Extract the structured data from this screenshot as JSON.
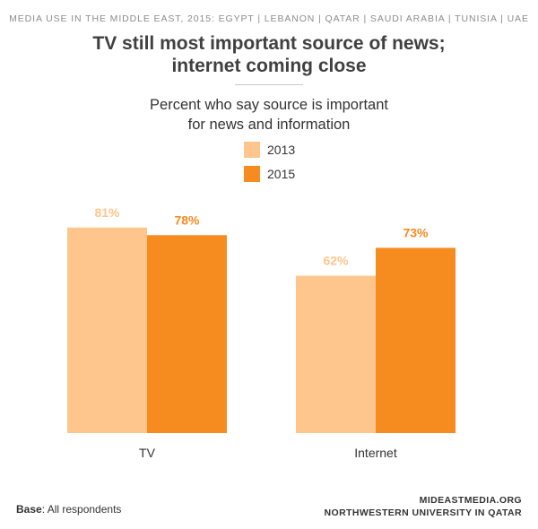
{
  "header": {
    "supertitle": "MEDIA USE IN THE MIDDLE EAST, 2015: EGYPT | LEBANON | QATAR | SAUDI ARABIA | TUNISIA | UAE",
    "title_line1": "TV still most important source of news;",
    "title_line2": "internet coming close"
  },
  "chart_data": {
    "type": "bar",
    "title": "TV still most important source of news; internet coming close",
    "subtitle": "Percent who say source is important for news and information",
    "subtitle_line1": "Percent who say source is important",
    "subtitle_line2": "for news and information",
    "categories": [
      "TV",
      "Internet"
    ],
    "series": [
      {
        "name": "2013",
        "values": [
          81,
          62
        ],
        "labels": [
          "81%",
          "62%"
        ],
        "color": "#FEC68C"
      },
      {
        "name": "2015",
        "values": [
          78,
          73
        ],
        "labels": [
          "78%",
          "73%"
        ],
        "color": "#F68B1F"
      }
    ],
    "ylim": [
      0,
      100
    ],
    "grid": false,
    "legend_position": "top-center",
    "xlabel": "",
    "ylabel": ""
  },
  "footer": {
    "base_label": "Base",
    "base_text": ": All respondents",
    "source_line1": "MIDEASTMEDIA.ORG",
    "source_line2": "NORTHWESTERN UNIVERSITY IN QATAR"
  }
}
